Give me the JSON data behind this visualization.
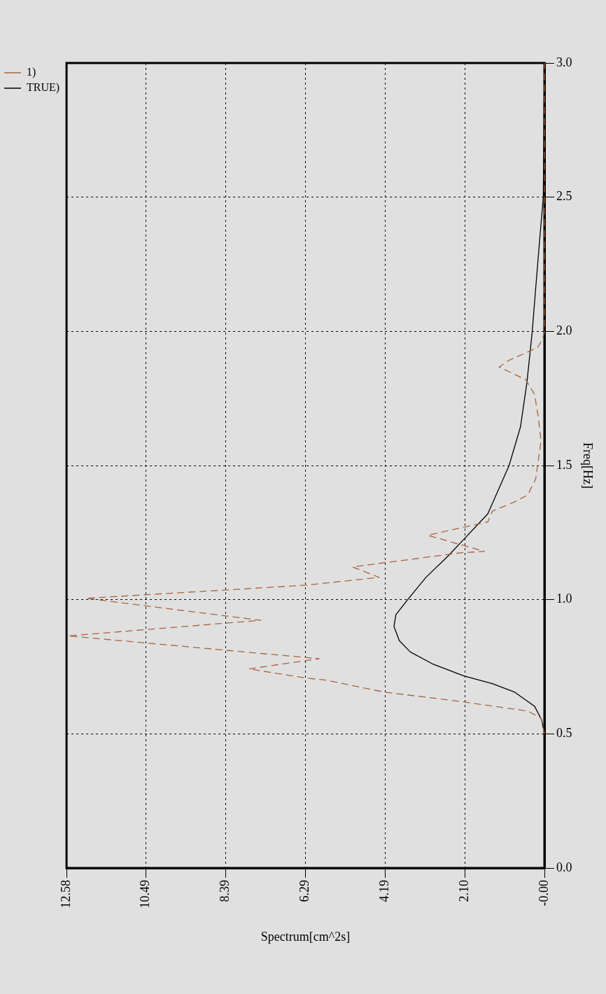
{
  "chart_data": {
    "type": "line",
    "xlabel": "Spectrum[cm^2s]",
    "ylabel": "Freq[Hz]",
    "xlim": [
      12.58,
      0
    ],
    "xticks": [
      {
        "value": 12.58,
        "label": "12.58"
      },
      {
        "value": 10.49,
        "label": "10.49"
      },
      {
        "value": 8.39,
        "label": "8.39"
      },
      {
        "value": 6.29,
        "label": "6.29"
      },
      {
        "value": 4.19,
        "label": "4.19"
      },
      {
        "value": 2.1,
        "label": "2.10"
      },
      {
        "value": 0,
        "label": "-0.00"
      }
    ],
    "ylim": [
      0,
      3
    ],
    "yticks": [
      {
        "value": 0,
        "label": "0.0"
      },
      {
        "value": 0.5,
        "label": "0.5"
      },
      {
        "value": 1,
        "label": "1.0"
      },
      {
        "value": 1.5,
        "label": "1.5"
      },
      {
        "value": 2,
        "label": "2.0"
      },
      {
        "value": 2.5,
        "label": "2.5"
      },
      {
        "value": 3,
        "label": "3.0"
      }
    ],
    "grid": true,
    "legend": "top left",
    "marker": "none",
    "series": [
      {
        "name": "1)",
        "color": "#a8633f",
        "line_style": "dashed",
        "values": [
          0.5,
          0.559,
          0.585,
          0.62,
          0.656,
          0.7,
          0.708,
          0.742,
          0.78,
          0.865,
          0.923,
          1.005,
          1.054,
          1.083,
          1.122,
          1.175,
          1.18,
          1.24,
          1.29,
          1.33,
          1.364,
          1.39,
          1.45,
          1.5,
          1.59,
          1.68,
          1.765,
          1.82,
          1.867,
          1.89,
          1.92,
          1.94,
          1.97,
          2.0,
          3.0
        ],
        "x": [
          0,
          0.09,
          0.44,
          2.19,
          4.23,
          5.75,
          6.28,
          7.78,
          5.93,
          12.54,
          7.47,
          12.07,
          6.28,
          4.35,
          5.05,
          2.19,
          1.58,
          3.07,
          1.49,
          1.37,
          0.79,
          0.44,
          0.23,
          0.18,
          0.09,
          0.16,
          0.26,
          0.49,
          1.19,
          0.96,
          0.49,
          0.18,
          0.05,
          0,
          0
        ]
      },
      {
        "name": "TRUE)",
        "color": "#000000",
        "line_style": "solid",
        "values": [
          0.5,
          0.551,
          0.603,
          0.656,
          0.687,
          0.716,
          0.761,
          0.805,
          0.847,
          0.9,
          0.944,
          1.0,
          1.083,
          1.162,
          1.225,
          1.32,
          1.5,
          1.644,
          1.81,
          2.0,
          2.16,
          2.35,
          2.5,
          3.0
        ],
        "x": [
          0,
          0.07,
          0.26,
          0.79,
          1.37,
          2.12,
          2.95,
          3.53,
          3.82,
          3.96,
          3.91,
          3.6,
          3.12,
          2.54,
          2.12,
          1.49,
          0.93,
          0.63,
          0.46,
          0.32,
          0.23,
          0.12,
          0.03,
          0
        ]
      }
    ]
  }
}
